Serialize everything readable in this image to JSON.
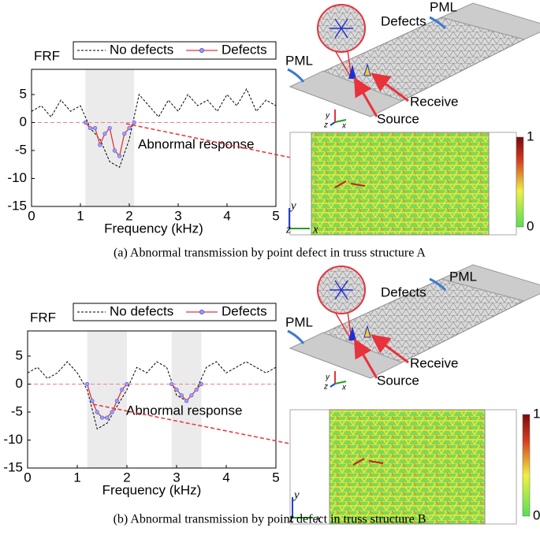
{
  "chart_data": [
    {
      "type": "line",
      "ylabel": "FRF",
      "xlabel": "Frequency (kHz)",
      "xlim": [
        0,
        5
      ],
      "ylim": [
        -15,
        9.5
      ],
      "xticks": [
        0,
        1,
        2,
        3,
        4,
        5
      ],
      "yticks": [
        5,
        0,
        -5,
        -10,
        -15
      ],
      "shaded": [
        [
          1.1,
          2.1
        ]
      ],
      "reference_line": 0,
      "series": [
        {
          "name": "No defects",
          "color": "#000000",
          "style": "dashed",
          "x": [
            0,
            0.2,
            0.4,
            0.6,
            0.8,
            1.0,
            1.2,
            1.4,
            1.6,
            1.8,
            2.0,
            2.2,
            2.4,
            2.6,
            2.8,
            3.0,
            3.2,
            3.4,
            3.6,
            3.8,
            4.0,
            4.2,
            4.4,
            4.6,
            4.8,
            5.0
          ],
          "values": [
            2,
            3,
            1,
            4,
            2,
            3,
            -1,
            -3,
            -7,
            -8,
            -3,
            5,
            3,
            1,
            4,
            2,
            5,
            3,
            4,
            2,
            5,
            3,
            6,
            2,
            4,
            3
          ]
        },
        {
          "name": "Defects",
          "color": "#e8323c",
          "style": "markers",
          "x": [
            1.1,
            1.2,
            1.3,
            1.4,
            1.5,
            1.6,
            1.7,
            1.8,
            1.9,
            2.0,
            2.1
          ],
          "values": [
            0,
            -1,
            -1,
            -4,
            -2,
            -1,
            -5,
            -6,
            -2,
            -1,
            0
          ]
        }
      ],
      "annotation": "Abnormal response",
      "illustration": {
        "pml_left": "PML",
        "pml_right": "PML",
        "defects": "Defects",
        "receive": "Receive",
        "source": "Source",
        "plate_axes": [
          "y",
          "z",
          "x"
        ],
        "map_axes": [
          "y",
          "z",
          "x"
        ],
        "colorbar_ticks": [
          1,
          0
        ]
      },
      "caption": "(a) Abnormal transmission by point defect in truss structure A"
    },
    {
      "type": "line",
      "ylabel": "FRF",
      "xlabel": "Frequency (kHz)",
      "xlim": [
        0,
        5
      ],
      "ylim": [
        -15,
        9.5
      ],
      "xticks": [
        0,
        1,
        2,
        3,
        4,
        5
      ],
      "yticks": [
        5,
        0,
        -5,
        -10,
        -15
      ],
      "shaded": [
        [
          1.2,
          2.0
        ],
        [
          2.9,
          3.5
        ]
      ],
      "reference_line": 0,
      "series": [
        {
          "name": "No defects",
          "color": "#000000",
          "style": "dashed",
          "x": [
            0,
            0.2,
            0.4,
            0.6,
            0.8,
            1.0,
            1.2,
            1.4,
            1.6,
            1.8,
            2.0,
            2.2,
            2.4,
            2.6,
            2.8,
            3.0,
            3.2,
            3.4,
            3.6,
            3.8,
            4.0,
            4.2,
            4.4,
            4.6,
            4.8,
            5.0
          ],
          "values": [
            2,
            3,
            1,
            2,
            4,
            2,
            -1,
            -8,
            -7,
            -4,
            -1,
            3,
            2,
            4,
            3,
            -2,
            -3,
            -1,
            3,
            4,
            2,
            3,
            4,
            3,
            2,
            3
          ]
        },
        {
          "name": "Defects",
          "color": "#e8323c",
          "style": "markers",
          "x": [
            1.2,
            1.3,
            1.4,
            1.5,
            1.6,
            1.7,
            1.8,
            1.9,
            2.0,
            2.1,
            2.2,
            2.3,
            2.4,
            2.5,
            2.6,
            2.7,
            2.8,
            2.9,
            3.0,
            3.1,
            3.2,
            3.3,
            3.4,
            3.5
          ],
          "values": [
            0,
            -3,
            -5,
            -6,
            -6,
            -5,
            -3,
            -1,
            0,
            null,
            null,
            null,
            null,
            null,
            null,
            null,
            null,
            0,
            -1,
            -2,
            -3,
            -2,
            -1,
            0
          ]
        }
      ],
      "annotation": "Abnormal response",
      "illustration": {
        "pml_left": "PML",
        "pml_right": "PML",
        "defects": "Defects",
        "receive": "Receive",
        "source": "Source",
        "plate_axes": [
          "y",
          "z",
          "x"
        ],
        "map_axes": [
          "y",
          "z",
          "x"
        ],
        "colorbar_ticks": [
          1,
          0
        ]
      },
      "caption": "(b) Abnormal transmission by point defect in truss structure B"
    }
  ]
}
